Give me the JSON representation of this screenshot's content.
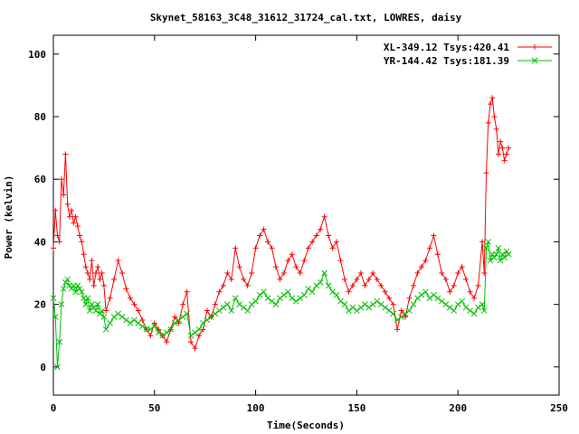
{
  "chart_data": {
    "type": "line",
    "title": "Skynet_58163_3C48_31612_31724_cal.txt, LOWRES, daisy",
    "xlabel": "Time(Seconds)",
    "ylabel": "Power (kelvin)",
    "xlim": [
      0,
      250
    ],
    "ylim": [
      -9,
      106
    ],
    "x_ticks": [
      0,
      50,
      100,
      150,
      200,
      250
    ],
    "y_ticks": [
      0,
      20,
      40,
      60,
      80,
      100
    ],
    "grid": false,
    "legend_position": "top-right",
    "series": [
      {
        "name": "XL-349.12 Tsys:420.41",
        "color": "#ff0000",
        "marker": "plus",
        "x": [
          0,
          1,
          2,
          3,
          4,
          5,
          6,
          7,
          8,
          9,
          10,
          11,
          12,
          13,
          14,
          15,
          16,
          17,
          18,
          19,
          20,
          21,
          22,
          23,
          24,
          25,
          26,
          28,
          30,
          32,
          34,
          36,
          38,
          40,
          42,
          44,
          46,
          48,
          50,
          52,
          54,
          56,
          58,
          60,
          62,
          64,
          66,
          68,
          70,
          72,
          74,
          76,
          78,
          80,
          82,
          84,
          86,
          88,
          90,
          92,
          94,
          96,
          98,
          100,
          102,
          104,
          106,
          108,
          110,
          112,
          114,
          116,
          118,
          120,
          122,
          124,
          126,
          128,
          130,
          132,
          134,
          136,
          138,
          140,
          142,
          144,
          146,
          148,
          150,
          152,
          154,
          156,
          158,
          160,
          162,
          164,
          166,
          168,
          170,
          172,
          174,
          176,
          178,
          180,
          182,
          184,
          186,
          188,
          190,
          192,
          194,
          196,
          198,
          200,
          202,
          204,
          206,
          208,
          210,
          212,
          213,
          214,
          215,
          216,
          217,
          218,
          219,
          220,
          221,
          222,
          223,
          224,
          225
        ],
        "y": [
          38,
          50,
          42,
          40,
          60,
          55,
          68,
          52,
          48,
          50,
          46,
          48,
          45,
          42,
          40,
          36,
          32,
          30,
          28,
          34,
          26,
          30,
          32,
          28,
          30,
          26,
          18,
          22,
          28,
          34,
          30,
          25,
          22,
          20,
          18,
          15,
          12,
          10,
          14,
          12,
          10,
          8,
          12,
          16,
          14,
          20,
          24,
          8,
          6,
          10,
          12,
          18,
          16,
          20,
          24,
          26,
          30,
          28,
          38,
          32,
          28,
          26,
          30,
          38,
          42,
          44,
          40,
          38,
          32,
          28,
          30,
          34,
          36,
          32,
          30,
          34,
          38,
          40,
          42,
          44,
          48,
          42,
          38,
          40,
          34,
          28,
          24,
          26,
          28,
          30,
          26,
          28,
          30,
          28,
          26,
          24,
          22,
          20,
          12,
          18,
          16,
          22,
          26,
          30,
          32,
          34,
          38,
          42,
          36,
          30,
          28,
          24,
          26,
          30,
          32,
          28,
          24,
          22,
          26,
          40,
          30,
          62,
          78,
          84,
          86,
          80,
          76,
          68,
          72,
          70,
          66,
          68,
          70
        ]
      },
      {
        "name": "YR-144.42 Tsys:181.39",
        "color": "#00c000",
        "marker": "cross",
        "x": [
          0,
          1,
          2,
          3,
          4,
          5,
          6,
          7,
          8,
          9,
          10,
          11,
          12,
          13,
          14,
          15,
          16,
          17,
          18,
          19,
          20,
          21,
          22,
          23,
          24,
          25,
          26,
          28,
          30,
          32,
          34,
          36,
          38,
          40,
          42,
          44,
          46,
          48,
          50,
          52,
          54,
          56,
          58,
          60,
          62,
          64,
          66,
          68,
          70,
          72,
          74,
          76,
          78,
          80,
          82,
          84,
          86,
          88,
          90,
          92,
          94,
          96,
          98,
          100,
          102,
          104,
          106,
          108,
          110,
          112,
          114,
          116,
          118,
          120,
          122,
          124,
          126,
          128,
          130,
          132,
          134,
          136,
          138,
          140,
          142,
          144,
          146,
          148,
          150,
          152,
          154,
          156,
          158,
          160,
          162,
          164,
          166,
          168,
          170,
          172,
          174,
          176,
          178,
          180,
          182,
          184,
          186,
          188,
          190,
          192,
          194,
          196,
          198,
          200,
          202,
          204,
          206,
          208,
          210,
          212,
          213,
          214,
          215,
          216,
          217,
          218,
          219,
          220,
          221,
          222,
          223,
          224,
          225
        ],
        "y": [
          22,
          16,
          0,
          8,
          20,
          25,
          27,
          28,
          26,
          25,
          26,
          24,
          26,
          25,
          24,
          22,
          20,
          22,
          18,
          20,
          19,
          18,
          20,
          17,
          18,
          16,
          12,
          14,
          16,
          17,
          16,
          15,
          14,
          15,
          14,
          13,
          12,
          12,
          13,
          11,
          10,
          11,
          12,
          14,
          15,
          16,
          17,
          10,
          11,
          12,
          14,
          15,
          16,
          17,
          18,
          19,
          20,
          18,
          22,
          20,
          19,
          18,
          20,
          21,
          23,
          24,
          22,
          21,
          20,
          22,
          23,
          24,
          22,
          21,
          22,
          23,
          25,
          24,
          26,
          27,
          30,
          26,
          24,
          23,
          21,
          20,
          18,
          19,
          18,
          19,
          20,
          19,
          20,
          21,
          20,
          19,
          18,
          17,
          15,
          16,
          17,
          18,
          20,
          22,
          23,
          24,
          22,
          23,
          22,
          21,
          20,
          19,
          18,
          20,
          21,
          19,
          18,
          17,
          19,
          20,
          18,
          38,
          40,
          34,
          36,
          35,
          36,
          38,
          34,
          36,
          35,
          37,
          36
        ]
      }
    ]
  }
}
